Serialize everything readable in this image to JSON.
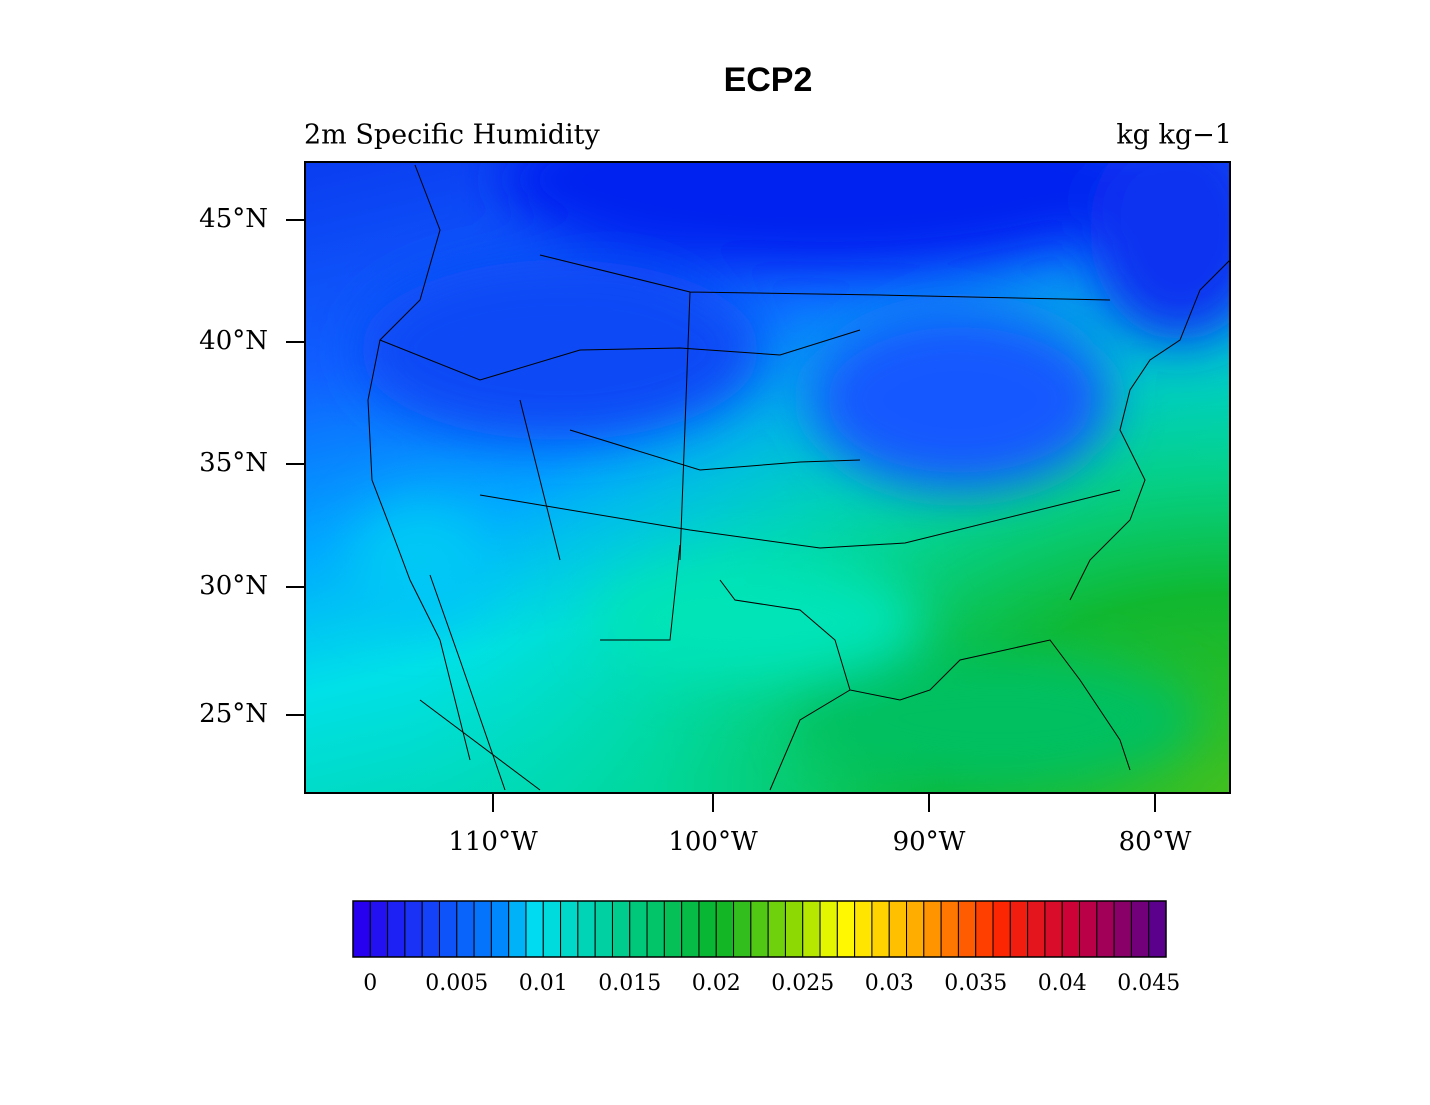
{
  "title": "ECP2",
  "left_string": "2m Specific Humidity",
  "right_string": "kg kg−1",
  "lat_labels": [
    "45°N",
    "40°N",
    "35°N",
    "30°N",
    "25°N"
  ],
  "lon_labels": [
    "110°W",
    "100°W",
    "90°W",
    "80°W"
  ],
  "colorbar": {
    "ticks": [
      0,
      0.005,
      0.01,
      0.015,
      0.02,
      0.025,
      0.03,
      0.035,
      0.04,
      0.045
    ]
  }
}
